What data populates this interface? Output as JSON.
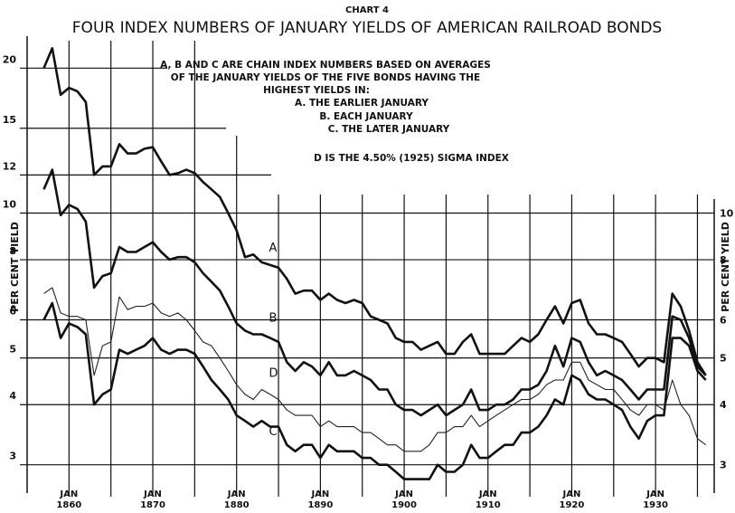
{
  "chart_data": {
    "type": "line",
    "supertitle": "CHART 4",
    "title": "FOUR INDEX NUMBERS OF JANUARY YIELDS OF AMERICAN RAILROAD BONDS",
    "annotations": [
      "A, B AND C ARE CHAIN INDEX NUMBERS BASED ON AVERAGES",
      "OF THE JANUARY YIELDS OF THE FIVE BONDS HAVING THE",
      "HIGHEST YIELDS IN:",
      "A. THE EARLIER JANUARY",
      "B. EACH JANUARY",
      "C. THE LATER JANUARY",
      "D IS THE 4.50% (1925) SIGMA INDEX"
    ],
    "ylabel": "PER CENT YIELD",
    "log_scale": true,
    "grid": true,
    "xlim": [
      1855,
      1937
    ],
    "xticks": [
      {
        "value": 1860,
        "label": "JAN 1860"
      },
      {
        "value": 1870,
        "label": "JAN 1870"
      },
      {
        "value": 1880,
        "label": "JAN 1880"
      },
      {
        "value": 1890,
        "label": "JAN 1890"
      },
      {
        "value": 1900,
        "label": "JAN 1900"
      },
      {
        "value": 1910,
        "label": "JAN 1910"
      },
      {
        "value": 1920,
        "label": "JAN 1920"
      },
      {
        "value": 1930,
        "label": "JAN 1930"
      }
    ],
    "xminor": [
      1865,
      1875,
      1885,
      1895,
      1905,
      1915,
      1925,
      1935
    ],
    "ylim": [
      2.62,
      23.3
    ],
    "yticks": [
      3,
      4,
      5,
      6,
      8,
      10,
      12,
      15,
      20
    ],
    "y2ticks": [
      3,
      4,
      5,
      6,
      8,
      10
    ],
    "x": [
      1857,
      1858,
      1859,
      1860,
      1861,
      1862,
      1863,
      1864,
      1865,
      1866,
      1867,
      1868,
      1869,
      1870,
      1871,
      1872,
      1873,
      1874,
      1875,
      1876,
      1877,
      1878,
      1879,
      1880,
      1881,
      1882,
      1883,
      1884,
      1885,
      1886,
      1887,
      1888,
      1889,
      1890,
      1891,
      1892,
      1893,
      1894,
      1895,
      1896,
      1897,
      1898,
      1899,
      1900,
      1901,
      1902,
      1903,
      1904,
      1905,
      1906,
      1907,
      1908,
      1909,
      1910,
      1911,
      1912,
      1913,
      1914,
      1915,
      1916,
      1917,
      1918,
      1919,
      1920,
      1921,
      1922,
      1923,
      1924,
      1925,
      1926,
      1927,
      1928,
      1929,
      1930,
      1931,
      1932,
      1933,
      1934,
      1935,
      1936
    ],
    "series": [
      {
        "name": "A",
        "color": "#111",
        "width": 2.6,
        "values": [
          20,
          22,
          17.6,
          18.2,
          17.9,
          17,
          12,
          12.5,
          12.5,
          13.9,
          13.3,
          13.3,
          13.6,
          13.7,
          12.8,
          12,
          12.1,
          12.3,
          12.1,
          11.6,
          11.2,
          10.8,
          10,
          9.2,
          8.1,
          8.2,
          7.9,
          7.8,
          7.7,
          7.3,
          6.8,
          6.9,
          6.9,
          6.6,
          6.8,
          6.6,
          6.5,
          6.6,
          6.5,
          6.1,
          6,
          5.9,
          5.5,
          5.4,
          5.4,
          5.2,
          5.3,
          5.4,
          5.1,
          5.1,
          5.4,
          5.6,
          5.1,
          5.1,
          5.1,
          5.1,
          5.3,
          5.5,
          5.4,
          5.6,
          6,
          6.4,
          5.9,
          6.5,
          6.6,
          5.9,
          5.6,
          5.6,
          5.5,
          5.4,
          5.1,
          4.8,
          5,
          5,
          4.9,
          6.8,
          6.4,
          5.7,
          4.9,
          4.6
        ]
      },
      {
        "name": "B",
        "color": "#111",
        "width": 2.6,
        "values": [
          11.2,
          12.3,
          9.9,
          10.4,
          10.2,
          9.6,
          7,
          7.4,
          7.5,
          8.5,
          8.3,
          8.3,
          8.5,
          8.7,
          8.3,
          8,
          8.1,
          8.1,
          7.9,
          7.5,
          7.2,
          6.9,
          6.4,
          5.9,
          5.7,
          5.6,
          5.6,
          5.5,
          5.4,
          4.9,
          4.7,
          4.9,
          4.8,
          4.6,
          4.9,
          4.6,
          4.6,
          4.7,
          4.6,
          4.5,
          4.3,
          4.3,
          4,
          3.9,
          3.9,
          3.8,
          3.9,
          4,
          3.8,
          3.9,
          4,
          4.3,
          3.9,
          3.9,
          4,
          4,
          4.1,
          4.3,
          4.3,
          4.4,
          4.7,
          5.3,
          4.8,
          5.5,
          5.4,
          4.9,
          4.6,
          4.7,
          4.6,
          4.5,
          4.3,
          4.1,
          4.3,
          4.3,
          4.3,
          6.1,
          6,
          5.5,
          4.8,
          4.6
        ]
      },
      {
        "name": "C",
        "color": "#111",
        "width": 2.6,
        "values": [
          6,
          6.5,
          5.5,
          5.9,
          5.8,
          5.6,
          4,
          4.2,
          4.3,
          5.2,
          5.1,
          5.2,
          5.3,
          5.5,
          5.2,
          5.1,
          5.2,
          5.2,
          5.1,
          4.8,
          4.5,
          4.3,
          4.1,
          3.8,
          3.7,
          3.6,
          3.7,
          3.6,
          3.6,
          3.3,
          3.2,
          3.3,
          3.3,
          3.1,
          3.3,
          3.2,
          3.2,
          3.2,
          3.1,
          3.1,
          3,
          3,
          2.9,
          2.8,
          2.8,
          2.8,
          2.8,
          3,
          2.9,
          2.9,
          3,
          3.3,
          3.1,
          3.1,
          3.2,
          3.3,
          3.3,
          3.5,
          3.5,
          3.6,
          3.8,
          4.1,
          4,
          4.6,
          4.5,
          4.2,
          4.1,
          4.1,
          4,
          3.9,
          3.6,
          3.4,
          3.7,
          3.8,
          3.8,
          5.5,
          5.5,
          5.3,
          4.7,
          4.5
        ]
      },
      {
        "name": "D",
        "color": "#222",
        "width": 1.1,
        "values": [
          6.8,
          7,
          6.2,
          6.1,
          6.1,
          6,
          4.6,
          5.3,
          5.4,
          6.7,
          6.3,
          6.4,
          6.4,
          6.5,
          6.2,
          6.1,
          6.2,
          6,
          5.7,
          5.4,
          5.3,
          5,
          4.7,
          4.4,
          4.2,
          4.1,
          4.3,
          4.2,
          4.1,
          3.9,
          3.8,
          3.8,
          3.8,
          3.6,
          3.7,
          3.6,
          3.6,
          3.6,
          3.5,
          3.5,
          3.4,
          3.3,
          3.3,
          3.2,
          3.2,
          3.2,
          3.3,
          3.5,
          3.5,
          3.6,
          3.6,
          3.8,
          3.6,
          3.7,
          3.8,
          3.9,
          4,
          4.1,
          4.1,
          4.2,
          4.4,
          4.5,
          4.5,
          4.9,
          4.9,
          4.5,
          4.4,
          4.3,
          4.3,
          4.1,
          3.9,
          3.8,
          4,
          4,
          3.9,
          4.5,
          4,
          3.8,
          3.4,
          3.3
        ]
      }
    ]
  }
}
